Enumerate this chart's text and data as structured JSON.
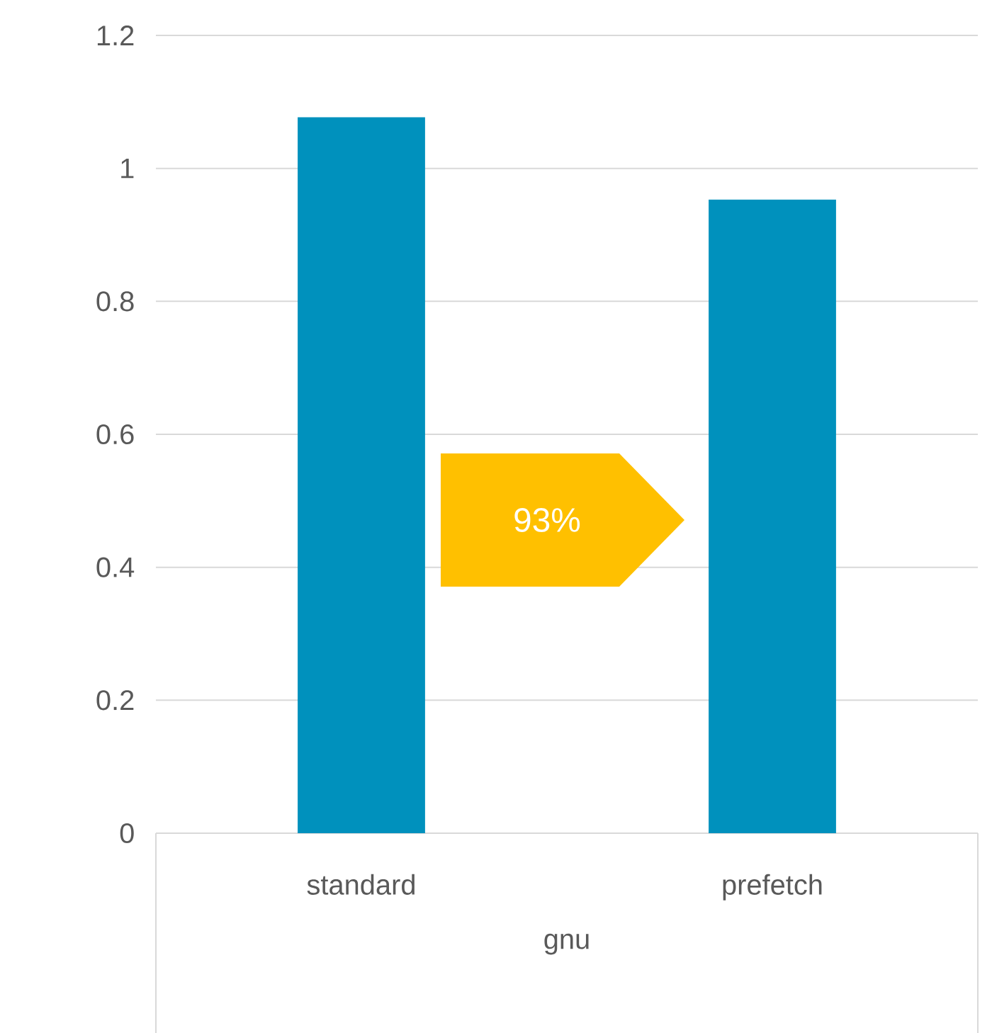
{
  "chart_data": {
    "type": "bar",
    "categories": [
      "standard",
      "prefetch"
    ],
    "values": [
      1.077,
      0.953
    ],
    "color": "#0091bd",
    "xlabel": "gnu",
    "ylim": [
      0,
      1.2
    ],
    "yticks": [
      0,
      0.2,
      0.4,
      0.6,
      0.8,
      1,
      1.2
    ],
    "grid": "y",
    "annotations": [
      "93%"
    ]
  }
}
